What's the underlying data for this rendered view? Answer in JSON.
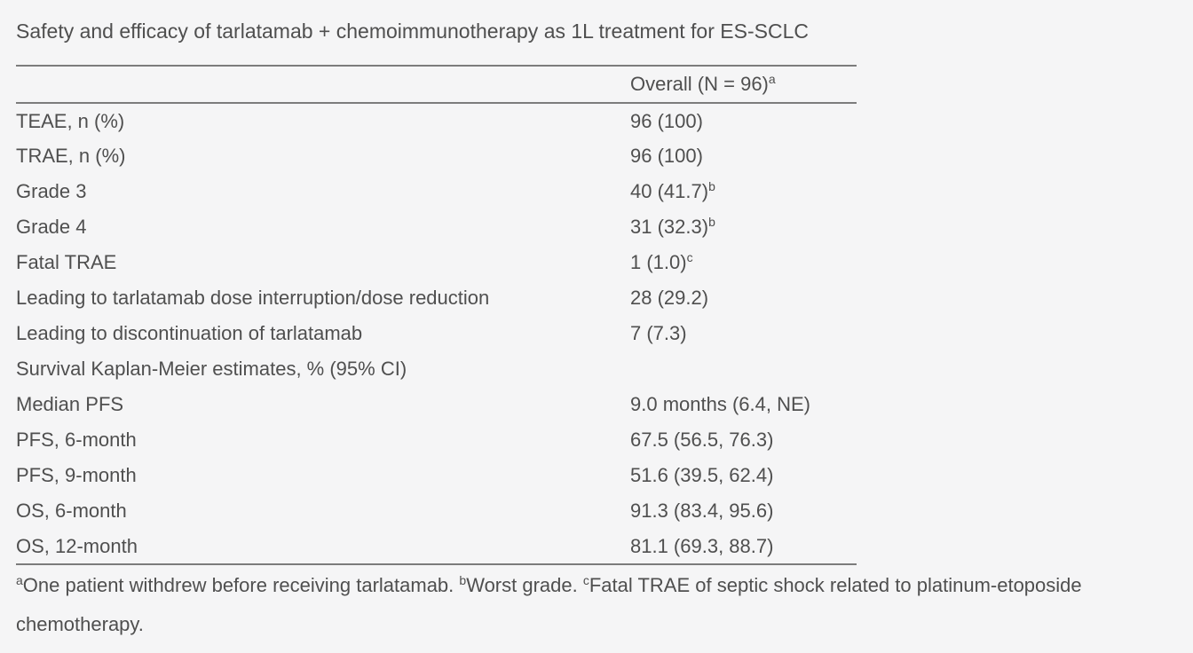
{
  "title": "Safety and efficacy of tarlatamab + chemoimmunotherapy as 1L treatment for ES-SCLC",
  "table": {
    "header": {
      "label": "Overall (N = 96)",
      "sup": "a"
    },
    "rows": [
      {
        "label": "TEAE, n (%)",
        "value": "96 (100)",
        "sup": ""
      },
      {
        "label": "TRAE, n (%)",
        "value": "96 (100)",
        "sup": ""
      },
      {
        "label": "Grade 3",
        "value": "40 (41.7)",
        "sup": "b"
      },
      {
        "label": "Grade 4",
        "value": "31 (32.3)",
        "sup": "b"
      },
      {
        "label": "Fatal TRAE",
        "value": "1 (1.0)",
        "sup": "c"
      },
      {
        "label": "Leading to tarlatamab dose interruption/dose reduction",
        "value": "28 (29.2)",
        "sup": ""
      },
      {
        "label": "Leading to discontinuation of tarlatamab",
        "value": "7 (7.3)",
        "sup": ""
      },
      {
        "label": "Survival Kaplan-Meier estimates, % (95% CI)",
        "value": "",
        "sup": ""
      },
      {
        "label": "Median PFS",
        "value": "9.0 months (6.4, NE)",
        "sup": ""
      },
      {
        "label": "PFS, 6-month",
        "value": "67.5 (56.5, 76.3)",
        "sup": ""
      },
      {
        "label": "PFS, 9-month",
        "value": "51.6 (39.5, 62.4)",
        "sup": ""
      },
      {
        "label": "OS, 6-month",
        "value": "91.3 (83.4, 95.6)",
        "sup": ""
      },
      {
        "label": "OS, 12-month",
        "value": "81.1 (69.3, 88.7)",
        "sup": ""
      }
    ]
  },
  "footnotes": [
    {
      "sup": "a",
      "text": "One patient withdrew before receiving tarlatamab. "
    },
    {
      "sup": "b",
      "text": "Worst grade. "
    },
    {
      "sup": "c",
      "text": "Fatal TRAE of septic shock related to platinum-etoposide chemotherapy."
    }
  ],
  "colors": {
    "background": "#f5f5f6",
    "text": "#4f4f4f",
    "rule": "#7c7c7c"
  }
}
